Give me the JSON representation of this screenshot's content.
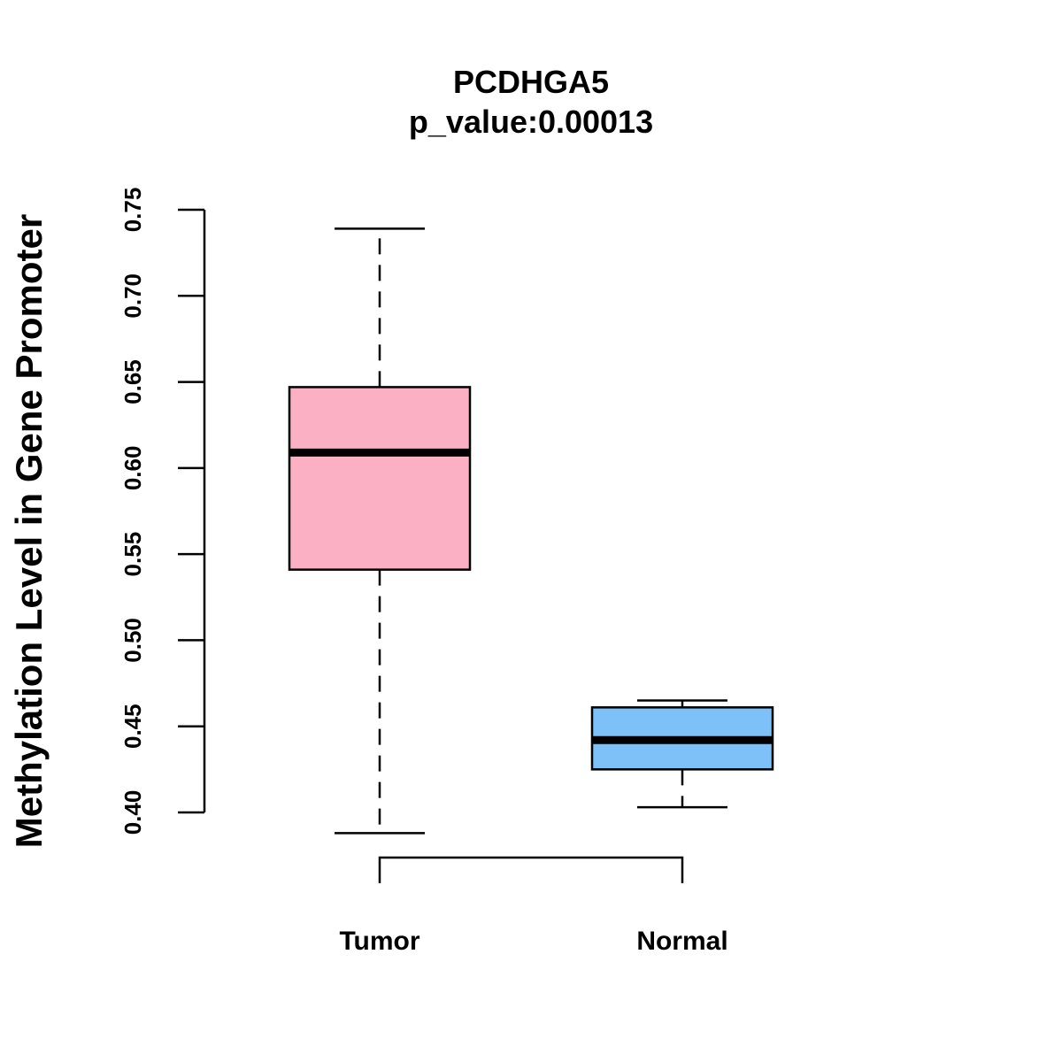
{
  "chart_data": {
    "type": "boxplot",
    "title": "PCDHGA5",
    "subtitle": "p_value:0.00013",
    "xlabel": "",
    "ylabel": "Methylation Level in Gene Promoter",
    "ylim": [
      0.4,
      0.75
    ],
    "yticks": [
      "0.40",
      "0.45",
      "0.50",
      "0.55",
      "0.60",
      "0.65",
      "0.70",
      "0.75"
    ],
    "categories": [
      "Tumor",
      "Normal"
    ],
    "boxes": [
      {
        "label": "Tumor",
        "color": "#FBB1C3",
        "min": 0.388,
        "q1": 0.541,
        "median": 0.609,
        "q3": 0.647,
        "max": 0.739
      },
      {
        "label": "Normal",
        "color": "#7EC1F8",
        "min": 0.403,
        "q1": 0.425,
        "median": 0.442,
        "q3": 0.461,
        "max": 0.465
      }
    ],
    "significance_bracket": {
      "from": "Tumor",
      "to": "Normal"
    },
    "grid": false,
    "legend": "none"
  }
}
